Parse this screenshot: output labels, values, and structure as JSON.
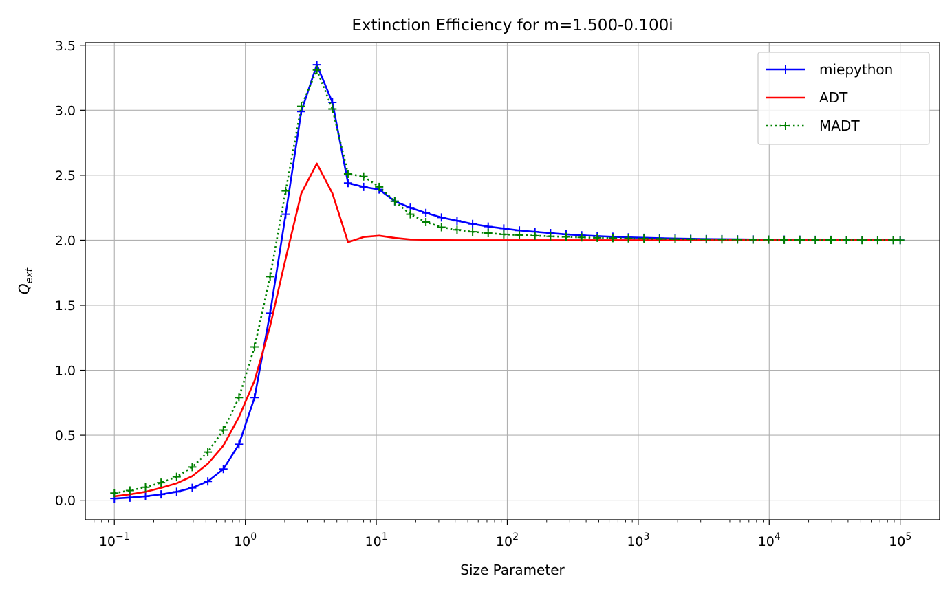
{
  "chart_data": {
    "type": "line",
    "title": "Extinction Efficiency for m=1.500-0.100i",
    "xlabel": "Size Parameter",
    "ylabel_base": "Q",
    "ylabel_sub": "ext",
    "xscale": "log",
    "xlim": [
      0.06,
      200000
    ],
    "ylim": [
      -0.15,
      3.52
    ],
    "xticks": [
      {
        "base": "10",
        "exp": "−1"
      },
      {
        "base": "10",
        "exp": "0"
      },
      {
        "base": "10",
        "exp": "1"
      },
      {
        "base": "10",
        "exp": "2"
      },
      {
        "base": "10",
        "exp": "3"
      },
      {
        "base": "10",
        "exp": "4"
      },
      {
        "base": "10",
        "exp": "5"
      }
    ],
    "yticks": [
      "0.0",
      "0.5",
      "1.0",
      "1.5",
      "2.0",
      "2.5",
      "3.0",
      "3.5"
    ],
    "grid": true,
    "legend_position": "top-right",
    "x": [
      0.1,
      0.1315,
      0.1729,
      0.2274,
      0.299,
      0.3932,
      0.5171,
      0.68,
      0.8942,
      1.176,
      1.546,
      2.033,
      2.674,
      3.516,
      4.624,
      6.081,
      7.997,
      10.52,
      13.83,
      18.18,
      23.91,
      31.45,
      41.36,
      54.39,
      71.52,
      94.05,
      123.7,
      162.7,
      213.9,
      281.3,
      369.9,
      486.4,
      639.7,
      841.2,
      1106,
      1455,
      1913,
      2516,
      3309,
      4351,
      5722,
      7525,
      9896,
      13014,
      17114,
      22505,
      29596,
      38920,
      51182,
      67307,
      88512,
      100000
    ],
    "series": [
      {
        "name": "miepython",
        "color": "#0000ff",
        "line_style": "solid",
        "marker": "+",
        "y": [
          0.013,
          0.02,
          0.03,
          0.045,
          0.065,
          0.095,
          0.145,
          0.24,
          0.43,
          0.79,
          1.44,
          2.2,
          2.99,
          3.35,
          3.06,
          2.44,
          2.41,
          2.39,
          2.3,
          2.25,
          2.21,
          2.175,
          2.15,
          2.125,
          2.105,
          2.09,
          2.075,
          2.065,
          2.055,
          2.045,
          2.038,
          2.032,
          2.027,
          2.022,
          2.019,
          2.016,
          2.013,
          2.011,
          2.009,
          2.008,
          2.007,
          2.006,
          2.005,
          2.004,
          2.004,
          2.003,
          2.003,
          2.002,
          2.002,
          2.002,
          2.001,
          2.001
        ]
      },
      {
        "name": "ADT",
        "color": "#ff0000",
        "line_style": "solid",
        "marker": "none",
        "x": [
          0.1,
          0.1315,
          0.1729,
          0.2274,
          0.299,
          0.3932,
          0.5171,
          0.68,
          0.8942,
          1.176,
          1.546,
          2.033,
          2.674,
          3.516,
          4.624,
          6.081,
          7.997,
          10.52,
          13.83,
          18.18,
          23.91,
          31.45,
          41.36,
          54.39,
          100000
        ],
        "y": [
          0.03,
          0.045,
          0.065,
          0.095,
          0.13,
          0.185,
          0.28,
          0.42,
          0.64,
          0.92,
          1.34,
          1.86,
          2.36,
          2.59,
          2.36,
          1.985,
          2.025,
          2.035,
          2.018,
          2.006,
          2.003,
          2.001,
          2.0,
          2.0,
          2.0
        ]
      },
      {
        "name": "MADT",
        "color": "#008000",
        "line_style": "dotted",
        "marker": "+",
        "y": [
          0.055,
          0.075,
          0.1,
          0.135,
          0.18,
          0.255,
          0.37,
          0.54,
          0.79,
          1.18,
          1.72,
          2.38,
          3.03,
          3.31,
          3.01,
          2.51,
          2.49,
          2.41,
          2.3,
          2.2,
          2.14,
          2.1,
          2.08,
          2.065,
          2.055,
          2.045,
          2.04,
          2.035,
          2.03,
          2.026,
          2.022,
          2.019,
          2.016,
          2.014,
          2.012,
          2.01,
          2.009,
          2.008,
          2.007,
          2.006,
          2.005,
          2.004,
          2.004,
          2.003,
          2.003,
          2.002,
          2.002,
          2.002,
          2.001,
          2.001,
          2.001,
          2.001
        ]
      }
    ]
  }
}
